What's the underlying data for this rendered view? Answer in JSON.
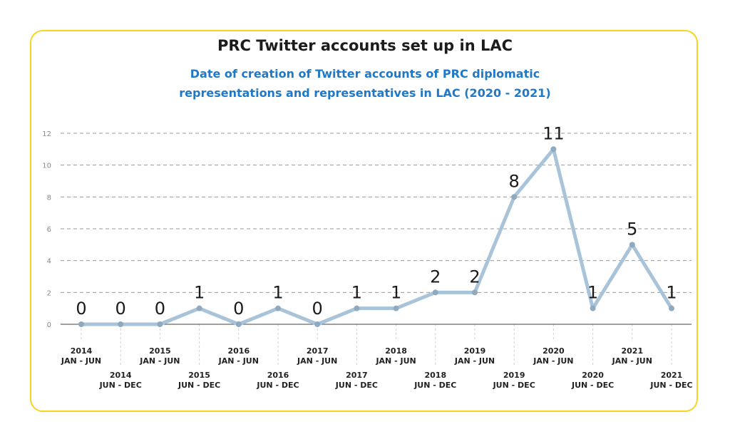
{
  "chart_data": {
    "type": "line",
    "title": "PRC Twitter accounts set up in LAC",
    "subtitle": [
      "Date of creation of Twitter accounts of PRC diplomatic",
      "representations and representatives in LAC (2020 - 2021)"
    ],
    "xlabel": "",
    "ylabel": "",
    "ylim": [
      0,
      12
    ],
    "yticks": [
      0,
      2,
      4,
      6,
      8,
      10,
      12
    ],
    "grid": true,
    "categories": [
      [
        "2014",
        "JAN - JUN"
      ],
      [
        "2014",
        "JUN - DEC"
      ],
      [
        "2015",
        "JAN - JUN"
      ],
      [
        "2015",
        "JUN - DEC"
      ],
      [
        "2016",
        "JAN - JUN"
      ],
      [
        "2016",
        "JUN - DEC"
      ],
      [
        "2017",
        "JAN - JUN"
      ],
      [
        "2017",
        "JUN - DEC"
      ],
      [
        "2018",
        "JAN - JUN"
      ],
      [
        "2018",
        "JUN - DEC"
      ],
      [
        "2019",
        "JAN - JUN"
      ],
      [
        "2019",
        "JUN - DEC"
      ],
      [
        "2020",
        "JAN - JUN"
      ],
      [
        "2020",
        "JUN - DEC"
      ],
      [
        "2021",
        "JAN - JUN"
      ],
      [
        "2021",
        "JUN - DEC"
      ]
    ],
    "values": [
      0,
      0,
      0,
      1,
      0,
      1,
      0,
      1,
      1,
      2,
      2,
      8,
      11,
      1,
      5,
      1
    ],
    "colors": {
      "line": "#a9c3d9",
      "marker": "#8fa9bf",
      "border": "#f7d51d",
      "subtitle": "#1f78c8"
    }
  }
}
